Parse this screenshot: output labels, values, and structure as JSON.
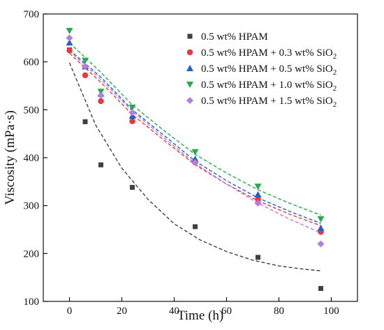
{
  "chart_data": {
    "type": "scatter",
    "xlabel": "Time (h)",
    "ylabel": "Viscosity (mPa·s)",
    "xlim": [
      -10,
      110
    ],
    "ylim": [
      100,
      700
    ],
    "xticks": [
      0,
      20,
      40,
      60,
      80,
      100
    ],
    "yticks": [
      100,
      200,
      300,
      400,
      500,
      600,
      700
    ],
    "grid": false,
    "legend_position": "top-right",
    "series": [
      {
        "name": "0.5 wt% HPAM",
        "color": "#404040",
        "marker": "square",
        "x": [
          0,
          6,
          12,
          24,
          48,
          72,
          96
        ],
        "y": [
          625,
          475,
          385,
          338,
          256,
          192,
          127
        ],
        "fit": [
          [
            0,
            598
          ],
          [
            10,
            468
          ],
          [
            20,
            378
          ],
          [
            30,
            313
          ],
          [
            40,
            262
          ],
          [
            50,
            228
          ],
          [
            60,
            204
          ],
          [
            70,
            186
          ],
          [
            80,
            174
          ],
          [
            90,
            167
          ],
          [
            96,
            164
          ]
        ]
      },
      {
        "name": "0.5 wt% HPAM + 0.3 wt% SiO",
        "name_sub": "2",
        "color": "#e8383d",
        "marker": "circle",
        "x": [
          0,
          6,
          12,
          24,
          48,
          72,
          96
        ],
        "y": [
          624,
          572,
          518,
          476,
          390,
          313,
          245
        ],
        "fit": [
          [
            0,
            618
          ],
          [
            12,
            557
          ],
          [
            24,
            490
          ],
          [
            36,
            437
          ],
          [
            48,
            385
          ],
          [
            60,
            345
          ],
          [
            72,
            310
          ],
          [
            84,
            282
          ],
          [
            96,
            258
          ]
        ]
      },
      {
        "name": "0.5 wt% HPAM + 0.5 wt% SiO",
        "name_sub": "2",
        "color": "#1f5fd6",
        "marker": "triangle-up",
        "x": [
          0,
          6,
          12,
          24,
          48,
          72,
          96
        ],
        "y": [
          640,
          590,
          533,
          487,
          397,
          323,
          253
        ],
        "fit": [
          [
            0,
            625
          ],
          [
            12,
            568
          ],
          [
            24,
            500
          ],
          [
            36,
            447
          ],
          [
            48,
            393
          ],
          [
            60,
            352
          ],
          [
            72,
            316
          ],
          [
            84,
            288
          ],
          [
            96,
            263
          ]
        ]
      },
      {
        "name": "0.5 wt% HPAM + 1.0 wt% SiO",
        "name_sub": "2",
        "color": "#2aa94a",
        "marker": "triangle-down",
        "x": [
          0,
          6,
          12,
          24,
          48,
          72,
          96
        ],
        "y": [
          665,
          603,
          538,
          505,
          412,
          340,
          272
        ],
        "fit": [
          [
            0,
            640
          ],
          [
            12,
            578
          ],
          [
            24,
            510
          ],
          [
            36,
            457
          ],
          [
            48,
            407
          ],
          [
            60,
            368
          ],
          [
            72,
            333
          ],
          [
            84,
            305
          ],
          [
            96,
            280
          ]
        ]
      },
      {
        "name": "0.5 wt% HPAM + 1.5 wt% SiO",
        "name_sub": "2",
        "color": "#b57edc",
        "marker": "diamond",
        "x": [
          0,
          6,
          12,
          24,
          48,
          72,
          96
        ],
        "y": [
          650,
          590,
          530,
          494,
          390,
          305,
          220
        ],
        "fit": [
          [
            0,
            623
          ],
          [
            12,
            563
          ],
          [
            24,
            497
          ],
          [
            36,
            442
          ],
          [
            48,
            388
          ],
          [
            60,
            345
          ],
          [
            72,
            305
          ],
          [
            84,
            272
          ],
          [
            96,
            243
          ]
        ]
      }
    ]
  }
}
